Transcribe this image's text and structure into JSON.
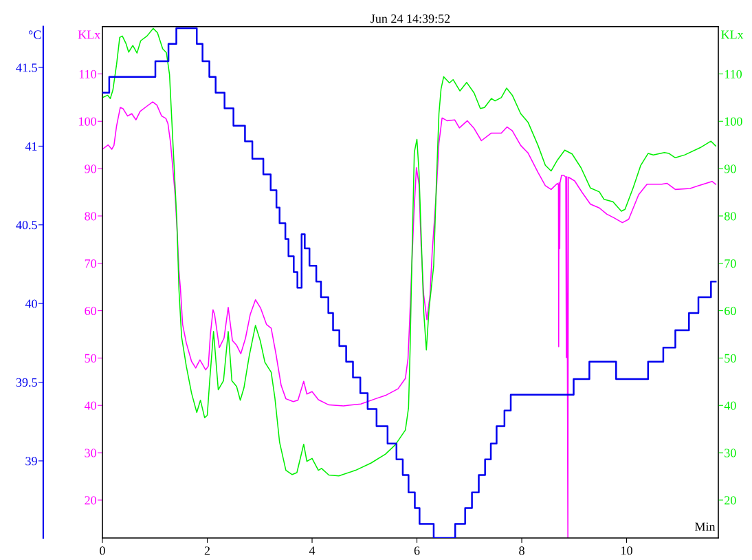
{
  "chart_data": {
    "type": "line",
    "title": "Jun 24 14:39:52",
    "xlabel": "Min",
    "ylabel": "KLx",
    "y2label": "KLx",
    "y3label": "°C",
    "xlim": [
      0,
      11.75
    ],
    "xticks": [
      0,
      2,
      4,
      6,
      8,
      10
    ],
    "ylim": [
      12,
      120
    ],
    "yticks": [
      20,
      30,
      40,
      50,
      60,
      70,
      80,
      90,
      100,
      110
    ],
    "y2lim": [
      12,
      120
    ],
    "y2ticks": [
      20,
      30,
      40,
      50,
      60,
      70,
      80,
      90,
      100,
      110
    ],
    "y3lim": [
      38.51,
      41.76
    ],
    "y3ticks": [
      39,
      39.5,
      40,
      40.5,
      41,
      41.5
    ],
    "series": [
      {
        "axis": "y2",
        "color": "#00ee00",
        "x": [
          0,
          0.1,
          0.15,
          0.2,
          0.27,
          0.33,
          0.38,
          0.45,
          0.5,
          0.58,
          0.66,
          0.73,
          0.85,
          0.97,
          1.05,
          1.15,
          1.22,
          1.28,
          1.35,
          1.42,
          1.46,
          1.51,
          1.6,
          1.7,
          1.8,
          1.87,
          1.95,
          2.0,
          2.05,
          2.12,
          2.21,
          2.31,
          2.4,
          2.47,
          2.56,
          2.63,
          2.7,
          2.8,
          2.92,
          3.01,
          3.1,
          3.22,
          3.29,
          3.38,
          3.5,
          3.62,
          3.71,
          3.84,
          3.9,
          4.0,
          4.12,
          4.18,
          4.32,
          4.51,
          4.83,
          5.12,
          5.4,
          5.59,
          5.78,
          5.84,
          5.87,
          5.9,
          5.95,
          6.0,
          6.04,
          6.08,
          6.13,
          6.18,
          6.23,
          6.32,
          6.37,
          6.42,
          6.46,
          6.51,
          6.62,
          6.69,
          6.82,
          6.95,
          7.09,
          7.21,
          7.29,
          7.42,
          7.49,
          7.61,
          7.71,
          7.82,
          7.98,
          8.12,
          8.31,
          8.45,
          8.56,
          8.68,
          8.82,
          8.96,
          9.13,
          9.31,
          9.48,
          9.57,
          9.74,
          9.9,
          9.97,
          10.13,
          10.27,
          10.41,
          10.51,
          10.72,
          10.81,
          10.93,
          11.11,
          11.4,
          11.61,
          11.7
        ],
        "values": [
          105,
          105.5,
          104.8,
          106.6,
          112,
          117.7,
          118,
          116.4,
          114.6,
          116,
          114.4,
          117,
          118,
          119.6,
          118.7,
          115.3,
          114.5,
          109.9,
          94.4,
          78.9,
          64.5,
          54.5,
          48.3,
          42.6,
          38.5,
          41.1,
          37.4,
          37.9,
          45.7,
          55.6,
          43.3,
          45.2,
          55.6,
          45.2,
          44.0,
          41.1,
          43.7,
          50.4,
          56.9,
          53.7,
          49.1,
          47,
          41.6,
          32.2,
          26.3,
          25.4,
          25.8,
          31.8,
          28.2,
          28.8,
          26.3,
          26.7,
          25.3,
          25.1,
          26.3,
          27.8,
          29.7,
          31.7,
          34.8,
          39.5,
          51.9,
          68.5,
          93.4,
          96.2,
          89.2,
          76.3,
          59.7,
          51.7,
          60.2,
          69.5,
          86.6,
          101.6,
          106.8,
          109.4,
          108.1,
          108.8,
          106.4,
          108.2,
          106,
          102.7,
          102.9,
          104.8,
          104.3,
          105,
          107,
          105.5,
          101.6,
          99.8,
          94.9,
          90.7,
          89.5,
          91.8,
          93.9,
          93.1,
          90.2,
          85.9,
          85.1,
          83.5,
          83,
          81,
          81.4,
          86.1,
          90.7,
          93.2,
          92.9,
          93.4,
          93.2,
          92.3,
          92.9,
          94.4,
          95.8,
          94.8
        ]
      },
      {
        "axis": "y",
        "color": "#ff00ff",
        "x": [
          0,
          0.11,
          0.18,
          0.22,
          0.27,
          0.34,
          0.39,
          0.48,
          0.56,
          0.64,
          0.72,
          0.85,
          0.96,
          1.04,
          1.13,
          1.21,
          1.25,
          1.3,
          1.35,
          1.39,
          1.43,
          1.46,
          1.49,
          1.53,
          1.6,
          1.7,
          1.78,
          1.86,
          1.97,
          2.02,
          2.06,
          2.11,
          2.14,
          2.23,
          2.32,
          2.4,
          2.48,
          2.56,
          2.64,
          2.73,
          2.82,
          2.92,
          3.02,
          3.13,
          3.22,
          3.31,
          3.41,
          3.5,
          3.64,
          3.73,
          3.84,
          3.9,
          4.0,
          4.12,
          4.32,
          4.6,
          4.93,
          5.21,
          5.4,
          5.64,
          5.78,
          5.83,
          5.86,
          5.94,
          5.99,
          6.04,
          6.08,
          6.13,
          6.19,
          6.25,
          6.29,
          6.37,
          6.42,
          6.48,
          6.58,
          6.72,
          6.81,
          6.96,
          7.09,
          7.23,
          7.42,
          7.61,
          7.72,
          7.82,
          7.98,
          8.12,
          8.31,
          8.45,
          8.56,
          8.68,
          8.7,
          8.705,
          8.71,
          8.725,
          8.73,
          8.76,
          8.8,
          8.84,
          8.85,
          8.86,
          8.88,
          8.89,
          9.01,
          9.15,
          9.31,
          9.48,
          9.62,
          9.76,
          9.92,
          10.04,
          10.23,
          10.39,
          10.67,
          10.77,
          10.93,
          11.21,
          11.4,
          11.63,
          11.7
        ],
        "values": [
          94.1,
          95,
          94.1,
          94.9,
          99,
          102.9,
          102.7,
          101.1,
          101.6,
          100.3,
          102.1,
          103.2,
          104.1,
          103.4,
          101.1,
          100.6,
          99.5,
          95.4,
          89.2,
          84,
          75.7,
          68.5,
          64.4,
          57.1,
          53.2,
          49.3,
          47.9,
          49.6,
          47.5,
          48.3,
          55,
          60.2,
          59.2,
          52.2,
          54.2,
          60.7,
          53.7,
          52.7,
          50.9,
          54.2,
          59.2,
          62.3,
          60.5,
          57.1,
          56.3,
          50.9,
          44.2,
          41.4,
          40.8,
          41.1,
          45.1,
          42.4,
          42.9,
          41.2,
          40.1,
          39.9,
          40.3,
          41.4,
          42.1,
          43.5,
          45.7,
          49.9,
          57.6,
          79.9,
          90.2,
          86.6,
          73.7,
          63.3,
          58.1,
          63.3,
          72.1,
          85,
          95.4,
          100.7,
          100.1,
          100.3,
          98.6,
          100.1,
          98.5,
          95.9,
          97.5,
          97.5,
          98.8,
          98,
          94.9,
          93.3,
          89.2,
          86.4,
          85.6,
          86.9,
          86.5,
          52.4,
          87,
          73.1,
          87,
          88.6,
          88.6,
          88.2,
          50.1,
          88.3,
          12.1,
          88.2,
          87.4,
          85,
          82.5,
          81.7,
          80.4,
          79.6,
          78.6,
          79.3,
          84.5,
          86.7,
          86.7,
          86.9,
          85.6,
          85.8,
          86.5,
          87.3,
          86.7
        ]
      },
      {
        "type": "step",
        "axis": "y3",
        "color": "#0000ee",
        "x": [
          0,
          0.13,
          1.01,
          1.26,
          1.41,
          1.8,
          1.91,
          2.04,
          2.16,
          2.33,
          2.5,
          2.72,
          2.86,
          3.07,
          3.21,
          3.32,
          3.38,
          3.49,
          3.55,
          3.65,
          3.72,
          3.8,
          3.86,
          3.95,
          4.08,
          4.17,
          4.31,
          4.4,
          4.52,
          4.65,
          4.78,
          4.92,
          5.06,
          5.23,
          5.44,
          5.61,
          5.73,
          5.84,
          5.96,
          6.05,
          6.32,
          6.73,
          6.92,
          7.05,
          7.18,
          7.3,
          7.41,
          7.52,
          7.67,
          7.79,
          8.99,
          9.29,
          9.8,
          10.41,
          10.7,
          10.93,
          11.19,
          11.37,
          11.61,
          11.7
        ],
        "values": [
          41.34,
          41.44,
          41.54,
          41.65,
          41.75,
          41.65,
          41.54,
          41.44,
          41.34,
          41.24,
          41.13,
          41.03,
          40.92,
          40.82,
          40.72,
          40.61,
          40.51,
          40.41,
          40.3,
          40.2,
          40.1,
          40.44,
          40.35,
          40.24,
          40.14,
          40.04,
          39.94,
          39.83,
          39.73,
          39.63,
          39.53,
          39.43,
          39.33,
          39.22,
          39.11,
          39.01,
          38.91,
          38.8,
          38.7,
          38.6,
          38.51,
          38.6,
          38.7,
          38.8,
          38.91,
          39.01,
          39.11,
          39.22,
          39.32,
          39.42,
          39.52,
          39.63,
          39.52,
          39.63,
          39.72,
          39.83,
          39.94,
          40.04,
          40.14,
          40.14
        ]
      }
    ]
  }
}
